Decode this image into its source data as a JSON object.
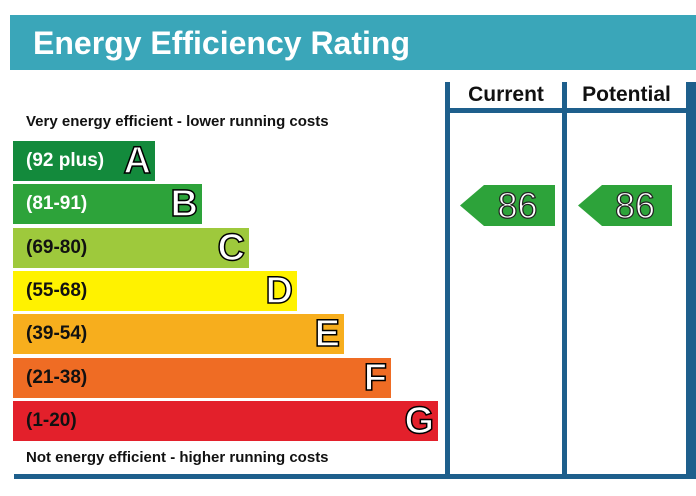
{
  "title": "Energy Efficiency Rating",
  "columns": {
    "current": "Current",
    "potential": "Potential"
  },
  "notes": {
    "top": "Very energy efficient - lower running costs",
    "bottom": "Not energy efficient - higher running costs"
  },
  "bands": [
    {
      "range": "(92 plus)",
      "letter": "A",
      "color": "#138a3c",
      "text_color": "#ffffff"
    },
    {
      "range": "(81-91)",
      "letter": "B",
      "color": "#2da33a",
      "text_color": "#ffffff"
    },
    {
      "range": "(69-80)",
      "letter": "C",
      "color": "#9ec93c",
      "text_color": "#111111"
    },
    {
      "range": "(55-68)",
      "letter": "D",
      "color": "#fff200",
      "text_color": "#111111"
    },
    {
      "range": "(39-54)",
      "letter": "E",
      "color": "#f7ae1d",
      "text_color": "#111111"
    },
    {
      "range": "(21-38)",
      "letter": "F",
      "color": "#ef6c24",
      "text_color": "#111111"
    },
    {
      "range": "(1-20)",
      "letter": "G",
      "color": "#e3202b",
      "text_color": "#111111"
    }
  ],
  "ratings": {
    "current": {
      "value": "86",
      "band": "B",
      "color": "#2da33a"
    },
    "potential": {
      "value": "86",
      "band": "B",
      "color": "#2da33a"
    }
  }
}
